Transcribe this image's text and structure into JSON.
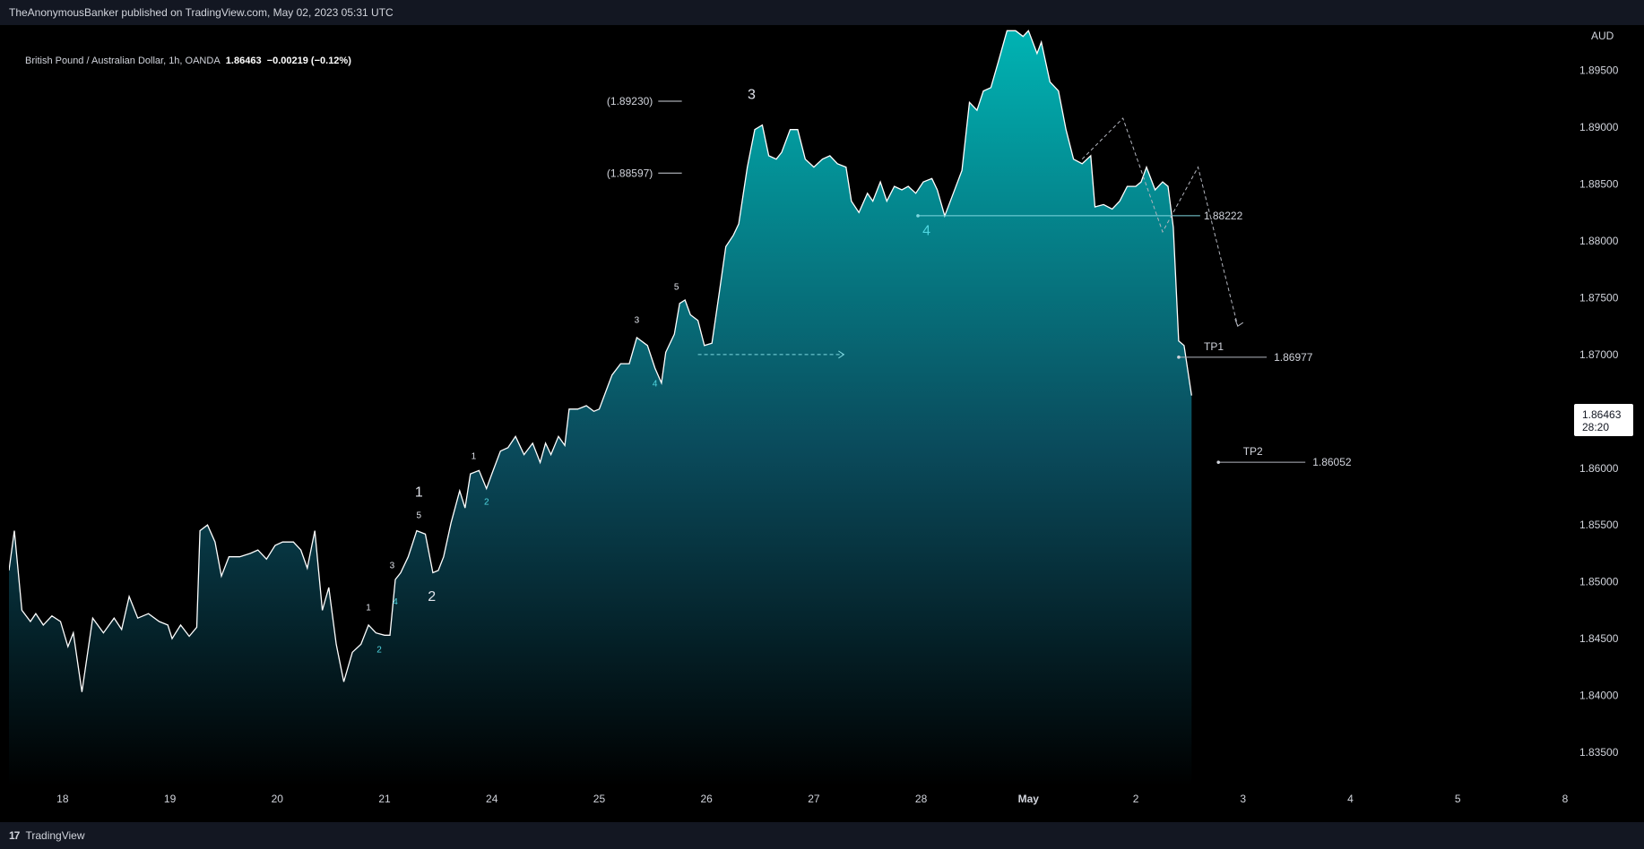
{
  "header": {
    "publisher_line": "TheAnonymousBanker published on TradingView.com, May 02, 2023 05:31 UTC"
  },
  "legend": {
    "symbol": "British Pound / Australian Dollar, 1h, OANDA",
    "last": "1.86463",
    "change": "−0.00219 (−0.12%)"
  },
  "footer": {
    "brand_logo": "17",
    "brand": "TradingView"
  },
  "chart_data": {
    "type": "area",
    "currency_label": "AUD",
    "accent_color": "#00b3b3",
    "line_color": "#ffffff",
    "ylim": [
      1.832,
      1.899
    ],
    "y_ticks": [
      1.835,
      1.84,
      1.845,
      1.85,
      1.855,
      1.86,
      1.865,
      1.87,
      1.875,
      1.88,
      1.885,
      1.89,
      1.895
    ],
    "y_tick_labels": [
      "1.83500",
      "1.84000",
      "1.84500",
      "1.85000",
      "1.85500",
      "1.86000",
      "1.86500",
      "1.87000",
      "1.87500",
      "1.88000",
      "1.88500",
      "1.89000",
      "1.89500"
    ],
    "x_range": [
      0,
      14.2
    ],
    "x_ticks": [
      {
        "x": 0.5,
        "label": "18"
      },
      {
        "x": 1.5,
        "label": "19"
      },
      {
        "x": 2.5,
        "label": "20"
      },
      {
        "x": 3.5,
        "label": "21"
      },
      {
        "x": 4.5,
        "label": "24"
      },
      {
        "x": 5.5,
        "label": "25"
      },
      {
        "x": 6.5,
        "label": "26"
      },
      {
        "x": 7.5,
        "label": "27"
      },
      {
        "x": 8.5,
        "label": "28"
      },
      {
        "x": 9.5,
        "label": "May"
      },
      {
        "x": 10.5,
        "label": "2"
      },
      {
        "x": 11.5,
        "label": "3"
      },
      {
        "x": 12.5,
        "label": "4"
      },
      {
        "x": 13.5,
        "label": "5"
      },
      {
        "x": 14.5,
        "label": "8"
      }
    ],
    "series": [
      {
        "values": [
          [
            0.0,
            1.851
          ],
          [
            0.05,
            1.8545
          ],
          [
            0.12,
            1.8475
          ],
          [
            0.2,
            1.8465
          ],
          [
            0.25,
            1.8472
          ],
          [
            0.32,
            1.8462
          ],
          [
            0.4,
            1.847
          ],
          [
            0.48,
            1.8465
          ],
          [
            0.55,
            1.8443
          ],
          [
            0.6,
            1.8455
          ],
          [
            0.68,
            1.8403
          ],
          [
            0.78,
            1.8468
          ],
          [
            0.88,
            1.8455
          ],
          [
            0.98,
            1.8468
          ],
          [
            1.05,
            1.8458
          ],
          [
            1.12,
            1.8487
          ],
          [
            1.2,
            1.8468
          ],
          [
            1.3,
            1.8472
          ],
          [
            1.4,
            1.8465
          ],
          [
            1.48,
            1.8462
          ],
          [
            1.52,
            1.845
          ],
          [
            1.6,
            1.8462
          ],
          [
            1.68,
            1.8452
          ],
          [
            1.75,
            1.846
          ],
          [
            1.78,
            1.8545
          ],
          [
            1.85,
            1.855
          ],
          [
            1.92,
            1.8535
          ],
          [
            1.98,
            1.8505
          ],
          [
            2.05,
            1.8522
          ],
          [
            2.15,
            1.8522
          ],
          [
            2.25,
            1.8525
          ],
          [
            2.32,
            1.8528
          ],
          [
            2.4,
            1.852
          ],
          [
            2.48,
            1.8532
          ],
          [
            2.55,
            1.8535
          ],
          [
            2.65,
            1.8535
          ],
          [
            2.72,
            1.8528
          ],
          [
            2.78,
            1.8512
          ],
          [
            2.85,
            1.8545
          ],
          [
            2.92,
            1.8475
          ],
          [
            2.98,
            1.8495
          ],
          [
            3.05,
            1.8445
          ],
          [
            3.12,
            1.8412
          ],
          [
            3.2,
            1.8438
          ],
          [
            3.28,
            1.8445
          ],
          [
            3.35,
            1.8462
          ],
          [
            3.42,
            1.8455
          ],
          [
            3.5,
            1.8453
          ],
          [
            3.55,
            1.8453
          ],
          [
            3.6,
            1.8502
          ],
          [
            3.65,
            1.8508
          ],
          [
            3.72,
            1.8522
          ],
          [
            3.8,
            1.8545
          ],
          [
            3.88,
            1.8542
          ],
          [
            3.95,
            1.8508
          ],
          [
            4.0,
            1.851
          ],
          [
            4.05,
            1.8522
          ],
          [
            4.12,
            1.8552
          ],
          [
            4.2,
            1.858
          ],
          [
            4.25,
            1.8565
          ],
          [
            4.3,
            1.8595
          ],
          [
            4.38,
            1.8598
          ],
          [
            4.45,
            1.8582
          ],
          [
            4.5,
            1.8595
          ],
          [
            4.58,
            1.8615
          ],
          [
            4.65,
            1.8618
          ],
          [
            4.72,
            1.8628
          ],
          [
            4.8,
            1.8612
          ],
          [
            4.88,
            1.8622
          ],
          [
            4.95,
            1.8605
          ],
          [
            5.0,
            1.8622
          ],
          [
            5.05,
            1.8612
          ],
          [
            5.12,
            1.8628
          ],
          [
            5.18,
            1.862
          ],
          [
            5.22,
            1.8652
          ],
          [
            5.3,
            1.8652
          ],
          [
            5.38,
            1.8655
          ],
          [
            5.45,
            1.865
          ],
          [
            5.5,
            1.8652
          ],
          [
            5.58,
            1.8672
          ],
          [
            5.62,
            1.8682
          ],
          [
            5.7,
            1.8692
          ],
          [
            5.78,
            1.8692
          ],
          [
            5.85,
            1.8715
          ],
          [
            5.95,
            1.8708
          ],
          [
            6.02,
            1.8688
          ],
          [
            6.08,
            1.8675
          ],
          [
            6.12,
            1.8702
          ],
          [
            6.2,
            1.8718
          ],
          [
            6.25,
            1.8745
          ],
          [
            6.3,
            1.8748
          ],
          [
            6.35,
            1.8735
          ],
          [
            6.42,
            1.873
          ],
          [
            6.48,
            1.8708
          ],
          [
            6.55,
            1.871
          ],
          [
            6.62,
            1.8755
          ],
          [
            6.68,
            1.8795
          ],
          [
            6.75,
            1.8805
          ],
          [
            6.8,
            1.8815
          ],
          [
            6.88,
            1.8865
          ],
          [
            6.95,
            1.8898
          ],
          [
            7.02,
            1.8902
          ],
          [
            7.08,
            1.8875
          ],
          [
            7.15,
            1.8872
          ],
          [
            7.2,
            1.8878
          ],
          [
            7.28,
            1.8898
          ],
          [
            7.35,
            1.8898
          ],
          [
            7.42,
            1.8872
          ],
          [
            7.5,
            1.8865
          ],
          [
            7.58,
            1.8872
          ],
          [
            7.65,
            1.8875
          ],
          [
            7.72,
            1.8868
          ],
          [
            7.8,
            1.8865
          ],
          [
            7.85,
            1.8835
          ],
          [
            7.92,
            1.8825
          ],
          [
            8.0,
            1.8842
          ],
          [
            8.05,
            1.8835
          ],
          [
            8.12,
            1.8852
          ],
          [
            8.18,
            1.8835
          ],
          [
            8.25,
            1.8848
          ],
          [
            8.32,
            1.8845
          ],
          [
            8.38,
            1.8848
          ],
          [
            8.45,
            1.8842
          ],
          [
            8.52,
            1.8852
          ],
          [
            8.6,
            1.8855
          ],
          [
            8.65,
            1.8845
          ],
          [
            8.72,
            1.8822
          ],
          [
            8.8,
            1.8842
          ],
          [
            8.88,
            1.8862
          ],
          [
            8.95,
            1.8922
          ],
          [
            9.02,
            1.8915
          ],
          [
            9.08,
            1.8932
          ],
          [
            9.15,
            1.8935
          ],
          [
            9.22,
            1.8958
          ],
          [
            9.3,
            1.8985
          ],
          [
            9.38,
            1.8985
          ],
          [
            9.45,
            1.898
          ],
          [
            9.5,
            1.8985
          ],
          [
            9.58,
            1.8965
          ],
          [
            9.62,
            1.8975
          ],
          [
            9.7,
            1.894
          ],
          [
            9.78,
            1.8932
          ],
          [
            9.85,
            1.8898
          ],
          [
            9.92,
            1.8872
          ],
          [
            10.0,
            1.8868
          ],
          [
            10.08,
            1.8875
          ],
          [
            10.12,
            1.883
          ],
          [
            10.2,
            1.8832
          ],
          [
            10.28,
            1.8828
          ],
          [
            10.35,
            1.8835
          ],
          [
            10.42,
            1.8848
          ],
          [
            10.5,
            1.8848
          ],
          [
            10.55,
            1.8852
          ],
          [
            10.6,
            1.8865
          ],
          [
            10.68,
            1.8845
          ],
          [
            10.75,
            1.8852
          ],
          [
            10.8,
            1.8848
          ],
          [
            10.85,
            1.8812
          ],
          [
            10.9,
            1.8712
          ],
          [
            10.95,
            1.8708
          ],
          [
            11.02,
            1.8664
          ]
        ]
      }
    ],
    "horizontal_levels": [
      {
        "label": "(1.89230)",
        "y": 1.8923
      },
      {
        "label": "(1.88597)",
        "y": 1.88597
      }
    ],
    "support_line": {
      "x0": 8.47,
      "x1": 11.1,
      "y": 1.88222,
      "label": "1.88222"
    },
    "targets": [
      {
        "name": "TP1",
        "x0": 10.9,
        "x1": 11.72,
        "y": 1.86977,
        "label": "1.86977"
      },
      {
        "name": "TP2",
        "x0": 11.27,
        "x1": 12.08,
        "y": 1.86052,
        "label": "1.86052"
      }
    ],
    "dashed_arrow": {
      "x0": 6.42,
      "x1": 7.78,
      "y": 1.87
    },
    "projection_path": [
      [
        10.0,
        1.8872
      ],
      [
        10.38,
        1.8908
      ],
      [
        10.75,
        1.8808
      ],
      [
        11.08,
        1.8865
      ],
      [
        11.45,
        1.8725
      ]
    ],
    "wave_labels": [
      {
        "text": "3",
        "x": 6.92,
        "y": 1.8925,
        "size": "large"
      },
      {
        "text": "4",
        "x": 8.55,
        "y": 1.8805,
        "size": "large",
        "color": "#4fd6e0"
      },
      {
        "text": "1",
        "x": 3.82,
        "y": 1.8575,
        "size": "large"
      },
      {
        "text": "2",
        "x": 3.94,
        "y": 1.8483,
        "size": "large"
      },
      {
        "text": "5",
        "x": 6.22,
        "y": 1.8757,
        "size": "small"
      },
      {
        "text": "3",
        "x": 5.85,
        "y": 1.8728,
        "size": "small"
      },
      {
        "text": "4",
        "x": 6.02,
        "y": 1.8672,
        "size": "small",
        "color": "#4fd6e0"
      },
      {
        "text": "1",
        "x": 4.33,
        "y": 1.8608,
        "size": "small"
      },
      {
        "text": "2",
        "x": 4.45,
        "y": 1.8568,
        "size": "small",
        "color": "#4fd6e0"
      },
      {
        "text": "5",
        "x": 3.82,
        "y": 1.8556,
        "size": "small"
      },
      {
        "text": "3",
        "x": 3.57,
        "y": 1.8512,
        "size": "small"
      },
      {
        "text": "4",
        "x": 3.6,
        "y": 1.848,
        "size": "small",
        "color": "#4fd6e0"
      },
      {
        "text": "1",
        "x": 3.35,
        "y": 1.8475,
        "size": "small"
      },
      {
        "text": "2",
        "x": 3.45,
        "y": 1.8438,
        "size": "small",
        "color": "#4fd6e0"
      }
    ],
    "price_tag": {
      "price": "1.86463",
      "timer": "28:20",
      "y": 1.86463
    }
  }
}
